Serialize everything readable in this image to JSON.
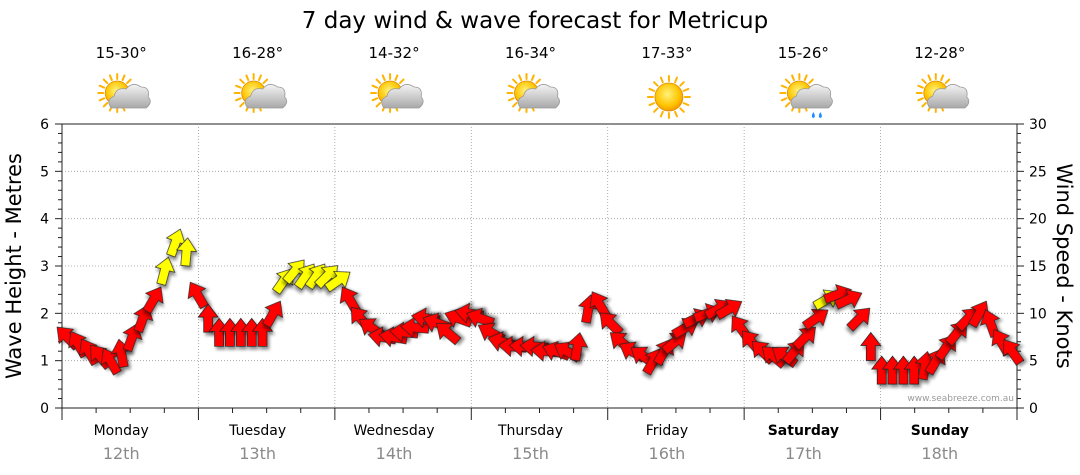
{
  "title": "7 day wind & wave forecast for Metricup",
  "credit": "www.seabreeze.com.au",
  "colors": {
    "calm": "#ffff00",
    "strong": "#ff0000",
    "outline": "#222222",
    "grid": "#9a9a9a"
  },
  "chart_data": {
    "type": "line",
    "title": "7 day wind & wave forecast for Metricup",
    "ylabel": "Wave Height - Metres",
    "y2label": "Wind Speed - Knots",
    "ylim": [
      0,
      6
    ],
    "y2lim": [
      0,
      30
    ],
    "yticks": [
      "0",
      "1",
      "2",
      "3",
      "4",
      "5",
      "6"
    ],
    "y2ticks": [
      "0",
      "5",
      "10",
      "15",
      "20",
      "25",
      "30"
    ],
    "grid": true,
    "days": [
      {
        "name": "Monday",
        "date": "12th",
        "temp": "15-30°",
        "weather": "partly-cloudy-icon",
        "bold": false
      },
      {
        "name": "Tuesday",
        "date": "13th",
        "temp": "16-28°",
        "weather": "partly-cloudy-icon",
        "bold": false
      },
      {
        "name": "Wednesday",
        "date": "14th",
        "temp": "14-32°",
        "weather": "partly-cloudy-icon",
        "bold": false
      },
      {
        "name": "Thursday",
        "date": "15th",
        "temp": "16-34°",
        "weather": "partly-cloudy-icon",
        "bold": false
      },
      {
        "name": "Friday",
        "date": "16th",
        "temp": "17-33°",
        "weather": "sunny-icon",
        "bold": false
      },
      {
        "name": "Saturday",
        "date": "17th",
        "temp": "15-26°",
        "weather": "showers-icon",
        "bold": true
      },
      {
        "name": "Sunday",
        "date": "18th",
        "temp": "12-28°",
        "weather": "partly-cloudy-icon",
        "bold": true
      }
    ],
    "series": [
      {
        "name": "Wind Speed",
        "unit": "knots",
        "values": [
          7.5,
          6.8,
          6,
          5.5,
          5,
          5.8,
          7.5,
          9.5,
          11.5,
          14.5,
          17.5,
          16.5,
          12,
          9.5,
          8,
          8,
          8,
          8,
          8,
          10,
          13.5,
          14.5,
          14,
          14,
          14,
          13.5,
          11.5,
          9.5,
          8.5,
          7.5,
          7.5,
          8,
          8.5,
          9.5,
          9,
          8,
          9.5,
          10,
          9.5,
          8,
          7,
          6.5,
          6.5,
          6.5,
          6,
          6,
          6,
          6.5,
          10.5,
          11,
          9,
          7,
          6,
          5.5,
          5,
          6,
          7,
          8.5,
          9.5,
          10,
          10.5,
          10.5,
          8.5,
          7,
          6,
          5.5,
          5.5,
          6,
          7.5,
          9.5,
          11.5,
          12,
          11.5,
          9.5,
          6.5,
          4,
          4,
          4,
          4,
          4.5,
          5,
          6.5,
          8,
          9.5,
          10,
          9,
          7,
          6
        ],
        "arrow_degrees": [
          135,
          150,
          150,
          140,
          150,
          170,
          200,
          200,
          210,
          195,
          200,
          185,
          150,
          180,
          180,
          180,
          180,
          180,
          180,
          210,
          215,
          220,
          215,
          215,
          225,
          235,
          150,
          140,
          125,
          100,
          100,
          95,
          95,
          100,
          110,
          130,
          110,
          100,
          110,
          120,
          105,
          95,
          95,
          95,
          95,
          110,
          120,
          190,
          190,
          150,
          135,
          130,
          120,
          125,
          210,
          210,
          230,
          240,
          245,
          250,
          240,
          240,
          145,
          140,
          135,
          130,
          125,
          220,
          225,
          235,
          240,
          250,
          245,
          225,
          180,
          180,
          180,
          180,
          180,
          190,
          210,
          215,
          220,
          225,
          210,
          160,
          150,
          145
        ],
        "calm_threshold_knots": 16
      }
    ],
    "note": ""
  }
}
